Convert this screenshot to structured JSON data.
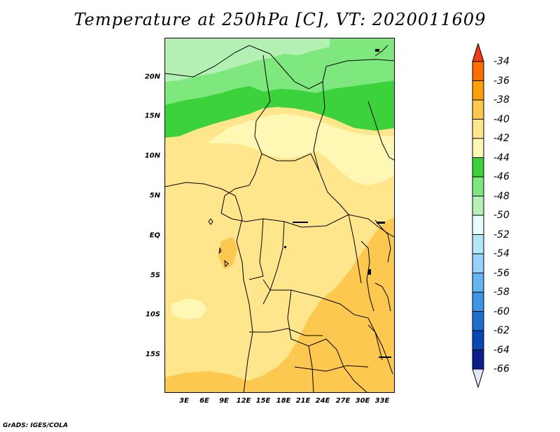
{
  "title": "Temperature at 250hPa [C], VT: 2020011609",
  "footer": "GrADS: IGES/COLA",
  "map": {
    "lat_labels": [
      "20N",
      "15N",
      "10N",
      "5N",
      "EQ",
      "5S",
      "10S",
      "15S"
    ],
    "lon_labels": [
      "3E",
      "6E",
      "9E",
      "12E",
      "15E",
      "18E",
      "21E",
      "24E",
      "27E",
      "30E",
      "33E"
    ],
    "colors": {
      "c50": "#b4f0b4",
      "c48": "#7ee87e",
      "c46": "#3cd23c",
      "c42": "#fff8b4",
      "c40": "#ffe68c",
      "c38": "#fcc850",
      "border": "#000000"
    }
  },
  "colorbar": {
    "labels": [
      "-34",
      "-36",
      "-38",
      "-40",
      "-42",
      "-44",
      "-46",
      "-48",
      "-50",
      "-52",
      "-54",
      "-56",
      "-58",
      "-60",
      "-62",
      "-64",
      "-66"
    ],
    "colors": [
      "#f03c14",
      "#fa6e00",
      "#fca00a",
      "#fcc850",
      "#ffe68c",
      "#fff8b4",
      "#3cd23c",
      "#7ee87e",
      "#b4f0b4",
      "#e6ffff",
      "#b4e6fa",
      "#96d2fa",
      "#64b4f0",
      "#3c96e6",
      "#1e6ed2",
      "#0a46b4",
      "#0a1e8c"
    ],
    "top_arrow_color": "#f03c14",
    "bottom_arrow_color": "#e6e6fa"
  }
}
